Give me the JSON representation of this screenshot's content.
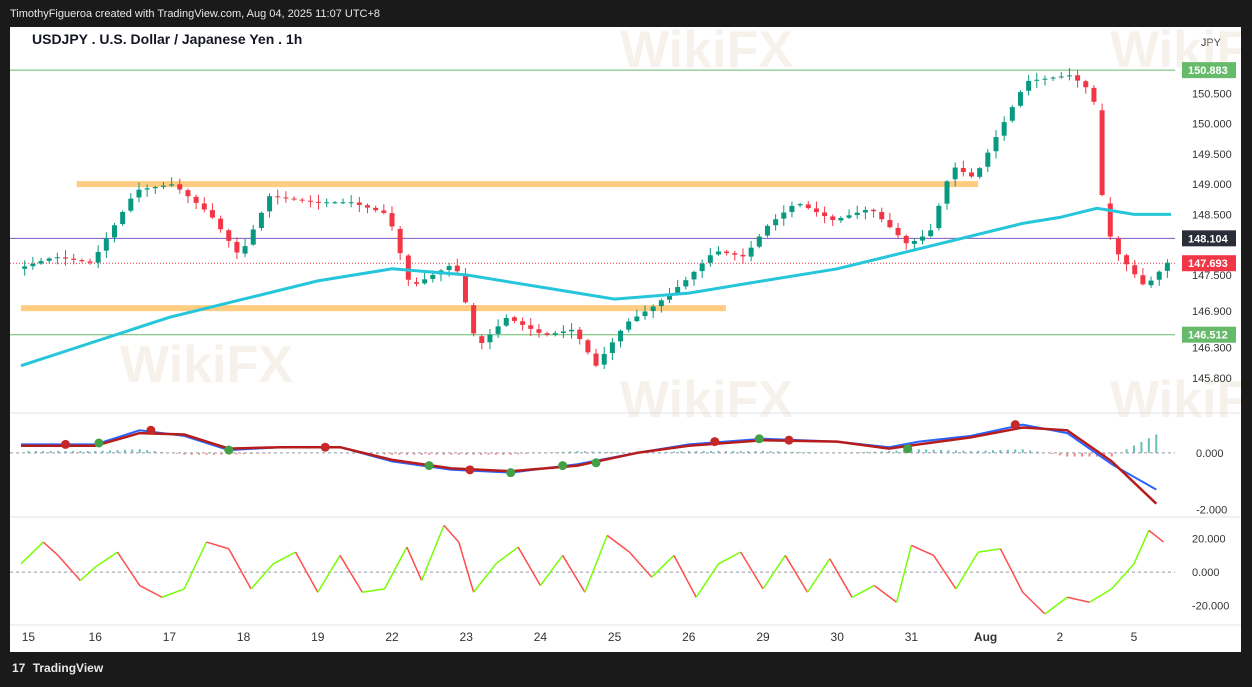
{
  "attribution": "TimothyFigueroa created with TradingView.com, Aug 04, 2025 11:07 UTC+8",
  "footer": {
    "logo_glyph": "17",
    "label": "TradingView"
  },
  "watermark": "WikiFX",
  "colors": {
    "up": "#089981",
    "down": "#f23645",
    "ema": "#26c6da",
    "zone": "#ffcc80",
    "level_line": "#66bb6a",
    "purple": "#7e57c2",
    "macd_line": "#2962ff",
    "signal_line": "#b71c1c",
    "cross_up": "#43a047",
    "cross_down": "#c62828",
    "osc_up": "#76ff03",
    "osc_down": "#ff4d4d"
  },
  "chart_data": {
    "type": "line",
    "title": "USDJPY . U.S. Dollar / Japanese Yen . 1h",
    "currency_label": "JPY",
    "x_tick_labels": [
      "15",
      "16",
      "17",
      "18",
      "19",
      "22",
      "23",
      "24",
      "25",
      "26",
      "29",
      "30",
      "31",
      "Aug",
      "2",
      "5"
    ],
    "price_axis": {
      "ylim": [
        145.4,
        151.1
      ],
      "tick_labels": [
        "150.500",
        "150.000",
        "149.500",
        "149.000",
        "148.500",
        "147.500",
        "146.900",
        "146.300",
        "145.800"
      ],
      "tick_values": [
        150.5,
        150.0,
        149.5,
        149.0,
        148.5,
        147.5,
        146.9,
        146.3,
        145.8
      ]
    },
    "price_path": [
      [
        0,
        147.6
      ],
      [
        0.5,
        147.8
      ],
      [
        1,
        147.7
      ],
      [
        1.6,
        148.9
      ],
      [
        2.1,
        149.0
      ],
      [
        2.6,
        148.5
      ],
      [
        3,
        147.8
      ],
      [
        3.4,
        148.8
      ],
      [
        4,
        148.7
      ],
      [
        4.5,
        148.7
      ],
      [
        5,
        148.5
      ],
      [
        5.3,
        147.3
      ],
      [
        5.9,
        147.7
      ],
      [
        6.2,
        146.3
      ],
      [
        6.6,
        146.8
      ],
      [
        7.1,
        146.5
      ],
      [
        7.5,
        146.6
      ],
      [
        7.8,
        146.0
      ],
      [
        8.2,
        146.7
      ],
      [
        8.6,
        147.0
      ],
      [
        9,
        147.4
      ],
      [
        9.4,
        147.9
      ],
      [
        9.8,
        147.8
      ],
      [
        10.1,
        148.3
      ],
      [
        10.5,
        148.7
      ],
      [
        11,
        148.4
      ],
      [
        11.5,
        148.6
      ],
      [
        12,
        148.0
      ],
      [
        12.3,
        148.2
      ],
      [
        12.6,
        149.3
      ],
      [
        12.9,
        149.1
      ],
      [
        13.2,
        149.8
      ],
      [
        13.6,
        150.7
      ],
      [
        14.2,
        150.8
      ],
      [
        14.5,
        150.5
      ],
      [
        14.65,
        148.4
      ],
      [
        14.8,
        147.9
      ],
      [
        15.2,
        147.3
      ],
      [
        15.5,
        147.7
      ]
    ],
    "ema_path": [
      [
        0,
        146.0
      ],
      [
        1,
        146.4
      ],
      [
        2,
        146.8
      ],
      [
        3,
        147.1
      ],
      [
        4,
        147.4
      ],
      [
        5,
        147.6
      ],
      [
        6,
        147.5
      ],
      [
        7,
        147.3
      ],
      [
        8,
        147.1
      ],
      [
        9,
        147.2
      ],
      [
        10,
        147.4
      ],
      [
        11,
        147.6
      ],
      [
        12,
        147.9
      ],
      [
        13,
        148.2
      ],
      [
        13.5,
        148.35
      ],
      [
        14,
        148.45
      ],
      [
        14.5,
        148.6
      ],
      [
        15,
        148.5
      ],
      [
        15.5,
        148.5
      ]
    ],
    "horizontal_levels": [
      {
        "name": "top-level",
        "value": 150.883,
        "label": "150.883"
      },
      {
        "name": "purple-level",
        "value": 148.104,
        "label": "148.104"
      },
      {
        "name": "current-price",
        "value": 147.693,
        "label": "147.693"
      },
      {
        "name": "bottom-level",
        "value": 146.512,
        "label": "146.512"
      }
    ],
    "zones": [
      {
        "name": "resistance-zone",
        "value": 149.0,
        "x_start": 0.75,
        "x_end": 12.9
      },
      {
        "name": "support-zone",
        "value": 146.95,
        "x_start": 0,
        "x_end": 9.5
      }
    ],
    "macd": {
      "tick_labels": [
        "0.000",
        "-2.000"
      ],
      "tick_values": [
        0,
        -2
      ],
      "ylim": [
        -2.2,
        1.2
      ],
      "line": [
        [
          0,
          0.3
        ],
        [
          1,
          0.3
        ],
        [
          1.6,
          0.8
        ],
        [
          2.2,
          0.6
        ],
        [
          2.8,
          0.1
        ],
        [
          3.5,
          0.2
        ],
        [
          4.3,
          0.2
        ],
        [
          5,
          -0.3
        ],
        [
          5.8,
          -0.6
        ],
        [
          6.6,
          -0.7
        ],
        [
          7.5,
          -0.4
        ],
        [
          8.3,
          0.0
        ],
        [
          9,
          0.3
        ],
        [
          10,
          0.5
        ],
        [
          11,
          0.4
        ],
        [
          11.7,
          0.2
        ],
        [
          12.1,
          0.4
        ],
        [
          12.8,
          0.6
        ],
        [
          13.5,
          1.0
        ],
        [
          14.1,
          0.7
        ],
        [
          14.7,
          -0.4
        ],
        [
          15.3,
          -1.3
        ]
      ],
      "signal": [
        [
          0,
          0.25
        ],
        [
          1,
          0.25
        ],
        [
          1.6,
          0.7
        ],
        [
          2.2,
          0.65
        ],
        [
          2.8,
          0.15
        ],
        [
          3.5,
          0.2
        ],
        [
          4.3,
          0.2
        ],
        [
          5,
          -0.25
        ],
        [
          5.8,
          -0.55
        ],
        [
          6.6,
          -0.65
        ],
        [
          7.5,
          -0.45
        ],
        [
          8.3,
          0.0
        ],
        [
          9,
          0.25
        ],
        [
          10,
          0.45
        ],
        [
          11,
          0.4
        ],
        [
          11.7,
          0.15
        ],
        [
          12.1,
          0.3
        ],
        [
          12.8,
          0.55
        ],
        [
          13.5,
          0.9
        ],
        [
          14.1,
          0.8
        ],
        [
          14.7,
          -0.3
        ],
        [
          15.3,
          -1.8
        ]
      ],
      "crosses": [
        [
          0.6,
          0.3,
          "down"
        ],
        [
          1.05,
          0.35,
          "up"
        ],
        [
          1.75,
          0.8,
          "down"
        ],
        [
          2.8,
          0.1,
          "up"
        ],
        [
          4.1,
          0.2,
          "down"
        ],
        [
          5.5,
          -0.45,
          "up"
        ],
        [
          6.05,
          -0.6,
          "down"
        ],
        [
          6.6,
          -0.7,
          "up"
        ],
        [
          7.3,
          -0.45,
          "up"
        ],
        [
          7.75,
          -0.35,
          "up"
        ],
        [
          9.35,
          0.4,
          "down"
        ],
        [
          9.95,
          0.5,
          "up"
        ],
        [
          10.35,
          0.45,
          "down"
        ],
        [
          11.95,
          0.15,
          "up"
        ],
        [
          13.4,
          1.0,
          "down"
        ]
      ]
    },
    "oscillator": {
      "tick_labels": [
        "20.000",
        "0.000",
        "-20.000"
      ],
      "tick_values": [
        20,
        0,
        -20
      ],
      "ylim": [
        -28,
        30
      ],
      "series": [
        [
          0,
          5
        ],
        [
          0.3,
          18
        ],
        [
          0.5,
          10
        ],
        [
          0.8,
          -5
        ],
        [
          1,
          3
        ],
        [
          1.3,
          12
        ],
        [
          1.6,
          -8
        ],
        [
          1.9,
          -15
        ],
        [
          2.2,
          -10
        ],
        [
          2.5,
          18
        ],
        [
          2.8,
          14
        ],
        [
          3.1,
          -10
        ],
        [
          3.4,
          5
        ],
        [
          3.7,
          12
        ],
        [
          4,
          -12
        ],
        [
          4.3,
          10
        ],
        [
          4.6,
          -12
        ],
        [
          4.9,
          -10
        ],
        [
          5.2,
          15
        ],
        [
          5.4,
          -5
        ],
        [
          5.7,
          28
        ],
        [
          5.9,
          18
        ],
        [
          6.1,
          -12
        ],
        [
          6.4,
          5
        ],
        [
          6.7,
          15
        ],
        [
          7,
          -8
        ],
        [
          7.3,
          10
        ],
        [
          7.6,
          -12
        ],
        [
          7.9,
          22
        ],
        [
          8.2,
          12
        ],
        [
          8.5,
          -3
        ],
        [
          8.8,
          10
        ],
        [
          9.1,
          -15
        ],
        [
          9.4,
          5
        ],
        [
          9.7,
          12
        ],
        [
          10,
          -10
        ],
        [
          10.3,
          10
        ],
        [
          10.6,
          -12
        ],
        [
          10.9,
          8
        ],
        [
          11.2,
          -15
        ],
        [
          11.5,
          -8
        ],
        [
          11.8,
          -18
        ],
        [
          12,
          16
        ],
        [
          12.3,
          10
        ],
        [
          12.6,
          -10
        ],
        [
          12.9,
          12
        ],
        [
          13.2,
          14
        ],
        [
          13.5,
          -12
        ],
        [
          13.8,
          -25
        ],
        [
          14.1,
          -15
        ],
        [
          14.4,
          -18
        ],
        [
          14.7,
          -10
        ],
        [
          15,
          5
        ],
        [
          15.2,
          25
        ],
        [
          15.4,
          18
        ]
      ]
    }
  }
}
